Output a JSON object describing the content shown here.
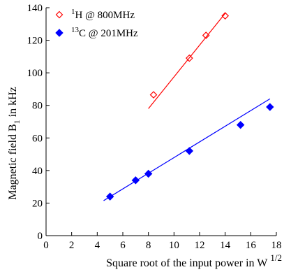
{
  "chart_data": {
    "type": "scatter",
    "title": "",
    "xlabel": {
      "main": "Square root of  the input power in W",
      "sup": "1/2"
    },
    "ylabel": {
      "main": "Magnetic field B",
      "sub": "1",
      "tail": " in kHz"
    },
    "xlim": [
      0,
      18
    ],
    "ylim": [
      0,
      140
    ],
    "xticks": [
      0,
      2,
      4,
      6,
      8,
      10,
      12,
      14,
      16,
      18
    ],
    "yticks": [
      0,
      20,
      40,
      60,
      80,
      100,
      120,
      140
    ],
    "grid": false,
    "legend_position": "top-left",
    "series": [
      {
        "name": {
          "sup": "1",
          "base": "H",
          "rest": "   @ 800MHz"
        },
        "marker": "open-diamond",
        "color": "#ff0000",
        "points": [
          [
            8.4,
            86.5
          ],
          [
            11.2,
            109
          ],
          [
            12.5,
            123
          ],
          [
            14.0,
            135
          ]
        ],
        "fit_line": [
          [
            8.0,
            78
          ],
          [
            14.0,
            136.5
          ]
        ]
      },
      {
        "name": {
          "sup": "13",
          "base": "C",
          "rest": " @ 201MHz"
        },
        "marker": "filled-diamond",
        "color": "#0000ff",
        "points": [
          [
            5.0,
            24
          ],
          [
            7.0,
            34
          ],
          [
            8.0,
            38
          ],
          [
            11.2,
            52
          ],
          [
            15.2,
            68
          ],
          [
            17.5,
            79
          ]
        ],
        "fit_line": [
          [
            4.5,
            21.5
          ],
          [
            17.5,
            84
          ]
        ]
      }
    ]
  }
}
